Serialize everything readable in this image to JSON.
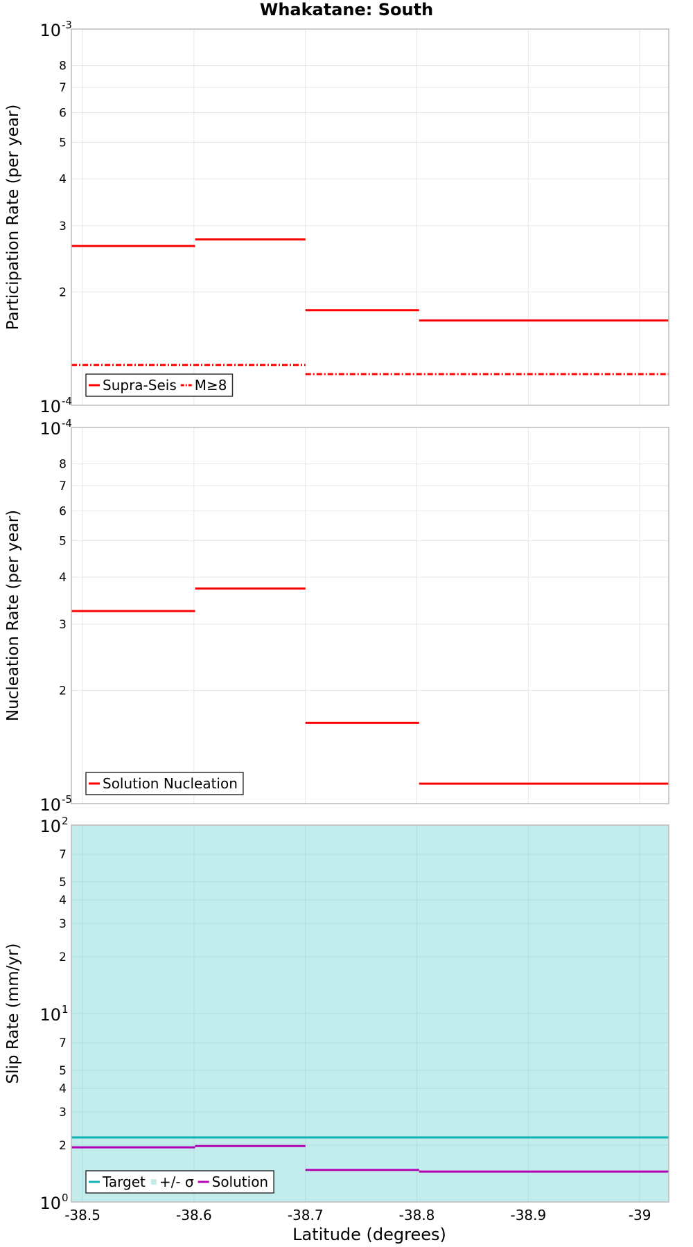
{
  "title": "Whakatane: South",
  "x_axis": {
    "label": "Latitude (degrees)",
    "domain": [
      -38.49,
      -39.026
    ],
    "ticks": [
      -38.5,
      -38.6,
      -38.7,
      -38.8,
      -38.9,
      -39
    ],
    "tick_labels": [
      "-38.5",
      "-38.6",
      "-38.7",
      "-38.8",
      "-38.9",
      "-39"
    ]
  },
  "colors": {
    "red": "#ff0000",
    "target": "#10b3b3",
    "band": "#c3ecec",
    "solution": "#b300b3",
    "grid": "#e6e6e6",
    "frame": "#bbbbbb"
  },
  "chart_data": [
    {
      "type": "line",
      "title": "Whakatane: South",
      "ylabel": "Participation Rate (per year)",
      "yscale": "log",
      "ylim": [
        0.0001,
        0.001
      ],
      "decade_labels": [
        {
          "base": "10",
          "exp": "-4"
        },
        {
          "base": "10",
          "exp": "-3"
        }
      ],
      "minor_labels": [
        "2",
        "3",
        "4",
        "5",
        "6",
        "7",
        "8"
      ],
      "series": [
        {
          "name": "Supra-Seis",
          "style": "solid",
          "steps": [
            {
              "x0": -38.49,
              "x1": -38.601,
              "y": 0.000265
            },
            {
              "x0": -38.601,
              "x1": -38.7,
              "y": 0.000276
            },
            {
              "x0": -38.7,
              "x1": -38.802,
              "y": 0.000179
            },
            {
              "x0": -38.802,
              "x1": -39.026,
              "y": 0.000168
            }
          ]
        },
        {
          "name": "M≥8",
          "style": "dashdot",
          "steps": [
            {
              "x0": -38.49,
              "x1": -38.7,
              "y": 0.000128
            },
            {
              "x0": -38.7,
              "x1": -39.026,
              "y": 0.000121
            }
          ]
        }
      ],
      "legend": [
        {
          "label": "Supra-Seis",
          "style": "solid"
        },
        {
          "label": "M≥8",
          "style": "dashdot"
        }
      ]
    },
    {
      "type": "line",
      "ylabel": "Nucleation Rate (per year)",
      "yscale": "log",
      "ylim": [
        1e-05,
        0.0001
      ],
      "decade_labels": [
        {
          "base": "10",
          "exp": "-5"
        },
        {
          "base": "10",
          "exp": "-4"
        }
      ],
      "minor_labels": [
        "2",
        "3",
        "4",
        "5",
        "6",
        "7",
        "8"
      ],
      "series": [
        {
          "name": "Solution Nucleation",
          "style": "solid",
          "steps": [
            {
              "x0": -38.49,
              "x1": -38.601,
              "y": 3.25e-05
            },
            {
              "x0": -38.601,
              "x1": -38.7,
              "y": 3.73e-05
            },
            {
              "x0": -38.7,
              "x1": -38.802,
              "y": 1.64e-05
            },
            {
              "x0": -38.802,
              "x1": -39.026,
              "y": 1.13e-05
            }
          ]
        }
      ],
      "legend": [
        {
          "label": "Solution Nucleation",
          "style": "solid"
        }
      ]
    },
    {
      "type": "line",
      "ylabel": "Slip Rate (mm/yr)",
      "yscale": "log",
      "ylim": [
        1,
        100
      ],
      "decade_labels": [
        {
          "base": "10",
          "exp": "0"
        },
        {
          "base": "10",
          "exp": "1"
        },
        {
          "base": "10",
          "exp": "2"
        }
      ],
      "minor_ticks": [
        2,
        3,
        4,
        5,
        7,
        20,
        30,
        40,
        50,
        70
      ],
      "minor_labels": [
        "2",
        "3",
        "4",
        "5",
        "7",
        "2",
        "3",
        "4",
        "5",
        "7"
      ],
      "band": {
        "name": "+/- σ",
        "y0": 1,
        "y1": 100
      },
      "series": [
        {
          "name": "Target",
          "style": "solid",
          "steps": [
            {
              "x0": -38.49,
              "x1": -39.026,
              "y": 2.2
            }
          ]
        },
        {
          "name": "Solution",
          "style": "solid",
          "steps": [
            {
              "x0": -38.49,
              "x1": -38.601,
              "y": 1.95
            },
            {
              "x0": -38.601,
              "x1": -38.7,
              "y": 1.98
            },
            {
              "x0": -38.7,
              "x1": -38.802,
              "y": 1.48
            },
            {
              "x0": -38.802,
              "x1": -39.026,
              "y": 1.45
            }
          ]
        }
      ],
      "legend": [
        {
          "label": "Target",
          "style": "solid"
        },
        {
          "label": "+/- σ",
          "style": "band"
        },
        {
          "label": "Solution",
          "style": "solid"
        }
      ]
    }
  ]
}
